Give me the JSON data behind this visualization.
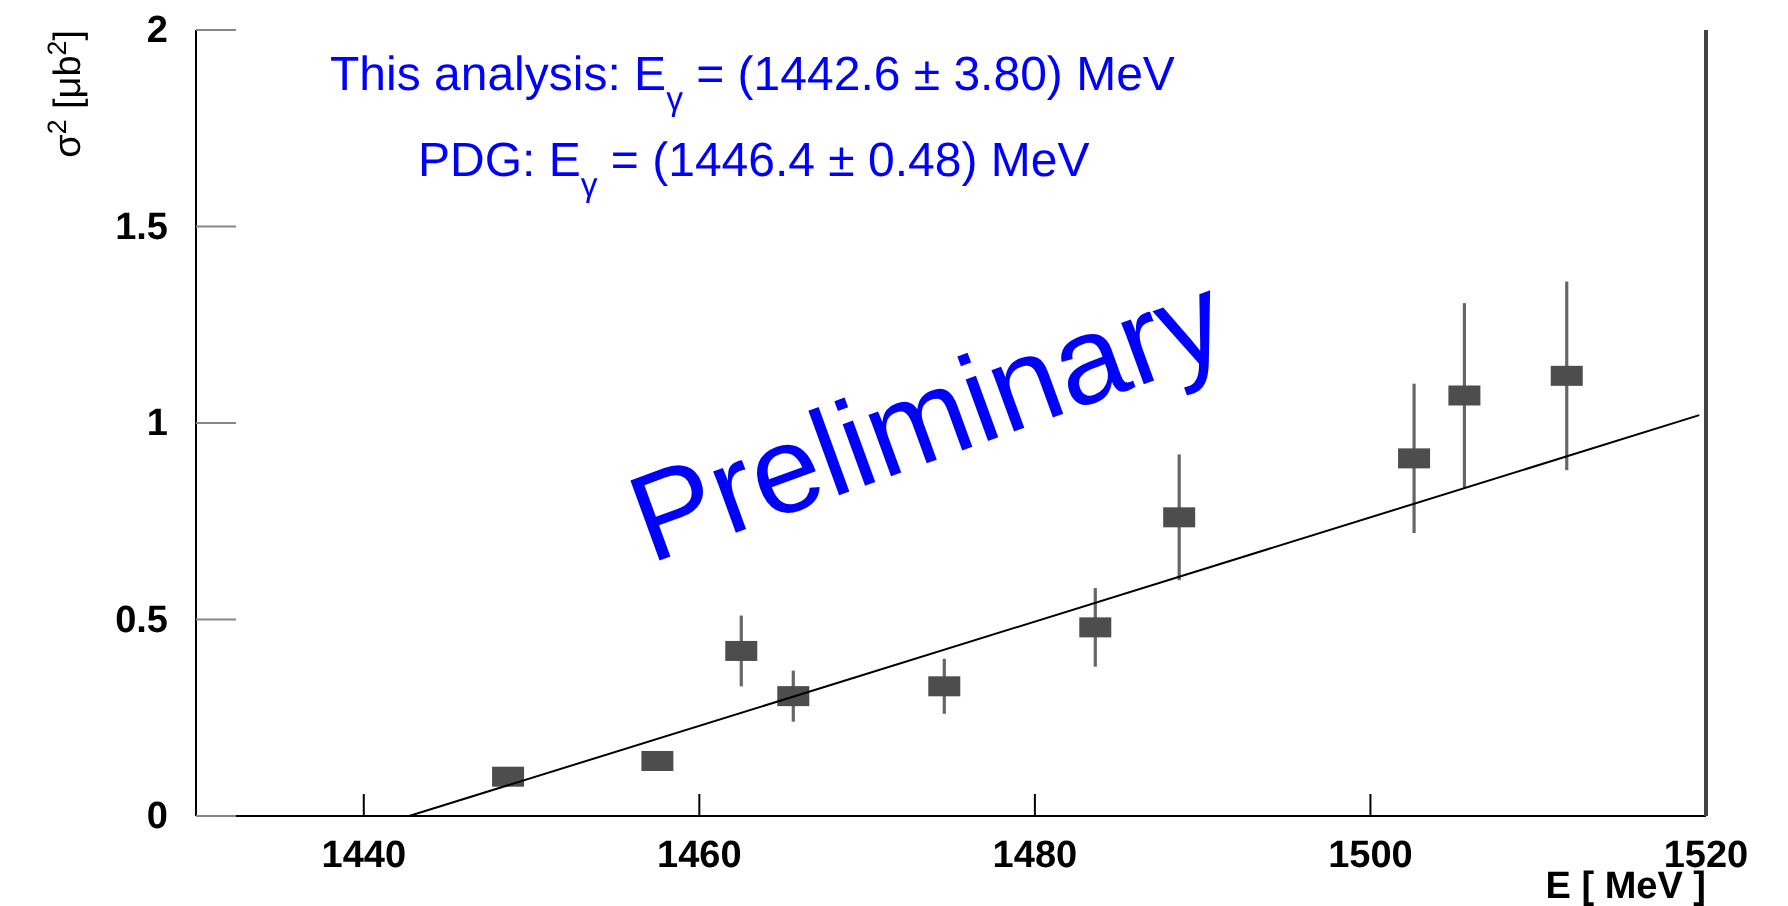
{
  "chart_data": [
    {
      "type": "scatter",
      "xlabel": "E [ MeV ]",
      "ylabel": "σ$^{2}$ [μb$^{2}$]",
      "xlim": [
        1430,
        1520
      ],
      "ylim": [
        0,
        2
      ],
      "xticks": [
        1440,
        1460,
        1480,
        1500,
        1520
      ],
      "yticks": [
        0,
        0.5,
        1,
        1.5,
        2
      ],
      "series": [
        {
          "type": "scatter",
          "marker": "square",
          "color": "#4d4d4d",
          "x": [
            1448.6,
            1457.5,
            1462.5,
            1465.6,
            1474.6,
            1483.6,
            1488.6,
            1502.6,
            1505.6,
            1511.7
          ],
          "values": [
            0.1,
            0.14,
            0.42,
            0.305,
            0.33,
            0.48,
            0.76,
            0.91,
            1.07,
            1.12
          ],
          "errors": [
            0.02,
            0.025,
            0.09,
            0.065,
            0.07,
            0.1,
            0.16,
            0.19,
            0.235,
            0.24
          ]
        },
        {
          "type": "line",
          "color": "#000000",
          "x": [
            1442.7,
            1519.6
          ],
          "values": [
            0,
            1.02
          ]
        }
      ],
      "annotations": [
        "This analysis: E$_{γ}$ = (1442.6 ± 3.80) MeV",
        "PDG: E$_{γ}$ = (1446.4 ± 0.48) MeV",
        "Preliminary"
      ]
    }
  ]
}
